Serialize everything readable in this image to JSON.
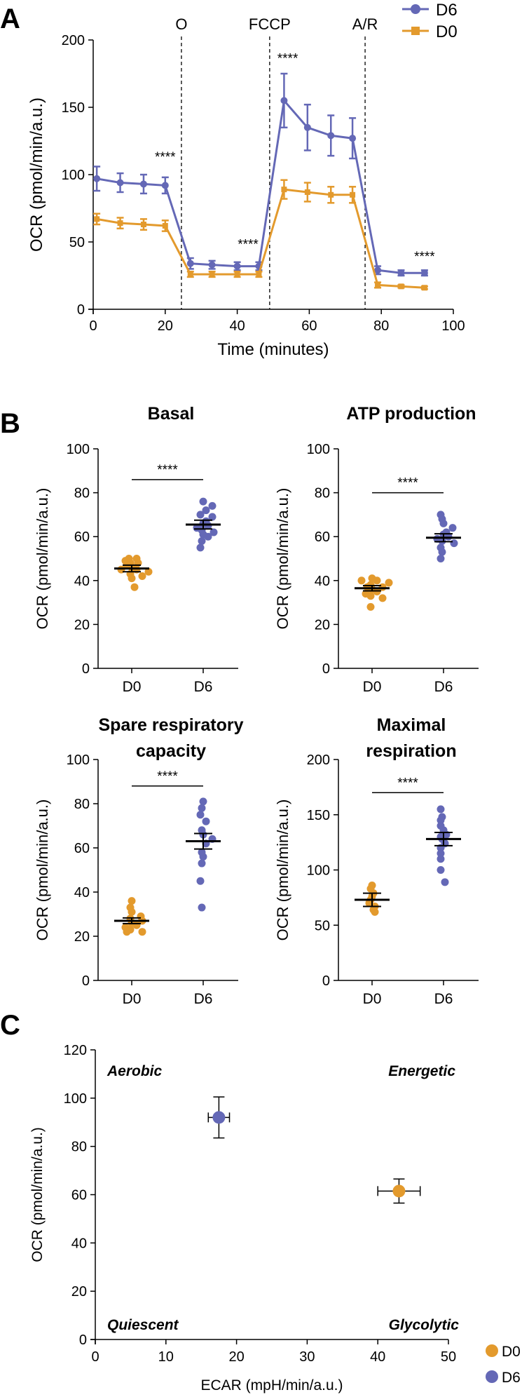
{
  "colors": {
    "d6": "#6468b6",
    "d0": "#e39a2d",
    "axis": "#000000"
  },
  "panel_a": {
    "label": "A",
    "chart_data": {
      "type": "line",
      "xlabel": "Time (minutes)",
      "ylabel": "OCR (pmol/min/a.u.)",
      "xlim": [
        0,
        100
      ],
      "ylim": [
        0,
        200
      ],
      "xticks": [
        0,
        20,
        40,
        60,
        80,
        100
      ],
      "yticks": [
        0,
        50,
        100,
        150,
        200
      ],
      "legend": "top-right",
      "injections": [
        {
          "label": "O",
          "x": 24.5
        },
        {
          "label": "FCCP",
          "x": 49
        },
        {
          "label": "A/R",
          "x": 75.5
        }
      ],
      "series": [
        {
          "name": "D6",
          "color": "#6468b6",
          "marker": "circle",
          "x": [
            1,
            7.5,
            14,
            20,
            27,
            33,
            40,
            46,
            53,
            59.5,
            66,
            72,
            79,
            85.5,
            92
          ],
          "y": [
            97,
            94,
            93,
            92,
            34,
            33,
            32,
            32,
            155,
            135,
            129,
            127,
            29,
            27,
            27
          ],
          "err": [
            9,
            7,
            7,
            6,
            4,
            3,
            3,
            3,
            20,
            17,
            15,
            15,
            3,
            2,
            2
          ]
        },
        {
          "name": "D0",
          "color": "#e39a2d",
          "marker": "square",
          "x": [
            1,
            7.5,
            14,
            20,
            27,
            33,
            40,
            46,
            53,
            59.5,
            66,
            72,
            79,
            85.5,
            92
          ],
          "y": [
            67,
            64,
            63,
            62,
            26,
            26,
            26,
            26,
            89,
            87,
            85,
            85,
            18,
            17,
            16
          ],
          "err": [
            4,
            4,
            4,
            4,
            2,
            2,
            2,
            2,
            7,
            7,
            6,
            6,
            2,
            1,
            1
          ]
        }
      ],
      "annotations": [
        {
          "text": "****",
          "x": 20,
          "y": 110
        },
        {
          "text": "****",
          "x": 43,
          "y": 45
        },
        {
          "text": "****",
          "x": 54,
          "y": 183
        },
        {
          "text": "****",
          "x": 92,
          "y": 36
        }
      ]
    }
  },
  "panel_b": {
    "label": "B",
    "charts": [
      {
        "title_lines": [
          "Basal"
        ],
        "chart_data": {
          "type": "scatter",
          "ylabel": "OCR (pmol/min/a.u.)",
          "categories": [
            "D0",
            "D6"
          ],
          "ylim": [
            0,
            100
          ],
          "yticks": [
            0,
            20,
            40,
            60,
            80,
            100
          ],
          "significance": "****",
          "sig_y": 86,
          "groups": [
            {
              "name": "D0",
              "mean": 45.5,
              "sem": 1.5,
              "points": [
                50,
                50,
                49,
                48,
                48,
                47,
                46,
                45,
                45,
                44,
                43,
                42,
                41,
                37
              ]
            },
            {
              "name": "D6",
              "mean": 65.5,
              "sem": 2,
              "points": [
                76,
                74,
                72,
                70,
                69,
                67,
                66,
                65,
                64,
                63,
                62,
                61,
                60,
                58,
                55
              ]
            }
          ]
        }
      },
      {
        "title_lines": [
          "ATP production"
        ],
        "chart_data": {
          "type": "scatter",
          "ylabel": "OCR (pmol/min/a.u.)",
          "categories": [
            "D0",
            "D6"
          ],
          "ylim": [
            0,
            100
          ],
          "yticks": [
            0,
            20,
            40,
            60,
            80,
            100
          ],
          "significance": "****",
          "sig_y": 80,
          "groups": [
            {
              "name": "D0",
              "mean": 36.5,
              "sem": 1.2,
              "points": [
                41,
                40,
                40,
                39,
                38,
                37,
                37,
                36,
                35,
                34,
                33,
                32,
                28
              ]
            },
            {
              "name": "D6",
              "mean": 59.5,
              "sem": 1.8,
              "points": [
                70,
                68,
                66,
                64,
                62,
                61,
                60,
                59,
                58,
                57,
                55,
                53,
                50
              ]
            }
          ]
        }
      },
      {
        "title_lines": [
          "Spare respiratory",
          "capacity"
        ],
        "chart_data": {
          "type": "scatter",
          "ylabel": "OCR (pmol/min/a.u.)",
          "categories": [
            "D0",
            "D6"
          ],
          "ylim": [
            0,
            100
          ],
          "yticks": [
            0,
            20,
            40,
            60,
            80,
            100
          ],
          "significance": "****",
          "sig_y": 88,
          "groups": [
            {
              "name": "D0",
              "mean": 27,
              "sem": 1.3,
              "points": [
                36,
                33,
                31,
                29,
                28,
                27,
                26,
                25,
                24,
                23,
                22,
                22
              ]
            },
            {
              "name": "D6",
              "mean": 63,
              "sem": 3.5,
              "points": [
                81,
                78,
                75,
                72,
                68,
                66,
                64,
                62,
                58,
                56,
                53,
                45,
                33
              ]
            }
          ]
        }
      },
      {
        "title_lines": [
          "Maximal",
          "respiration"
        ],
        "chart_data": {
          "type": "scatter",
          "ylabel": "OCR (pmol/min/a.u.)",
          "categories": [
            "D0",
            "D6"
          ],
          "ylim": [
            0,
            200
          ],
          "yticks": [
            0,
            50,
            100,
            150,
            200
          ],
          "significance": "****",
          "sig_y": 170,
          "groups": [
            {
              "name": "D0",
              "mean": 73,
              "sem": 6,
              "points": [
                86,
                83,
                79,
                76,
                73,
                70,
                67,
                64,
                62
              ]
            },
            {
              "name": "D6",
              "mean": 128,
              "sem": 6,
              "points": [
                155,
                148,
                145,
                140,
                136,
                132,
                130,
                128,
                124,
                120,
                115,
                110,
                100,
                89
              ]
            }
          ]
        }
      }
    ]
  },
  "panel_c": {
    "label": "C",
    "chart_data": {
      "type": "scatter",
      "xlabel": "ECAR (mpH/min/a.u.)",
      "ylabel": "OCR (pmol/min/a.u.)",
      "xlim": [
        0,
        50
      ],
      "ylim": [
        0,
        120
      ],
      "xticks": [
        0,
        10,
        20,
        30,
        40,
        50
      ],
      "yticks": [
        0,
        20,
        40,
        60,
        80,
        100,
        120
      ],
      "legend": "bottom-right",
      "quadrants": [
        "Aerobic",
        "Energetic",
        "Quiescent",
        "Glycolytic"
      ],
      "series": [
        {
          "name": "D0",
          "color": "#e39a2d",
          "x": 43,
          "y": 61.5,
          "xerr": 3,
          "yerr": 5
        },
        {
          "name": "D6",
          "color": "#6468b6",
          "x": 17.5,
          "y": 92,
          "xerr": 1.5,
          "yerr": 8.5
        }
      ]
    }
  }
}
